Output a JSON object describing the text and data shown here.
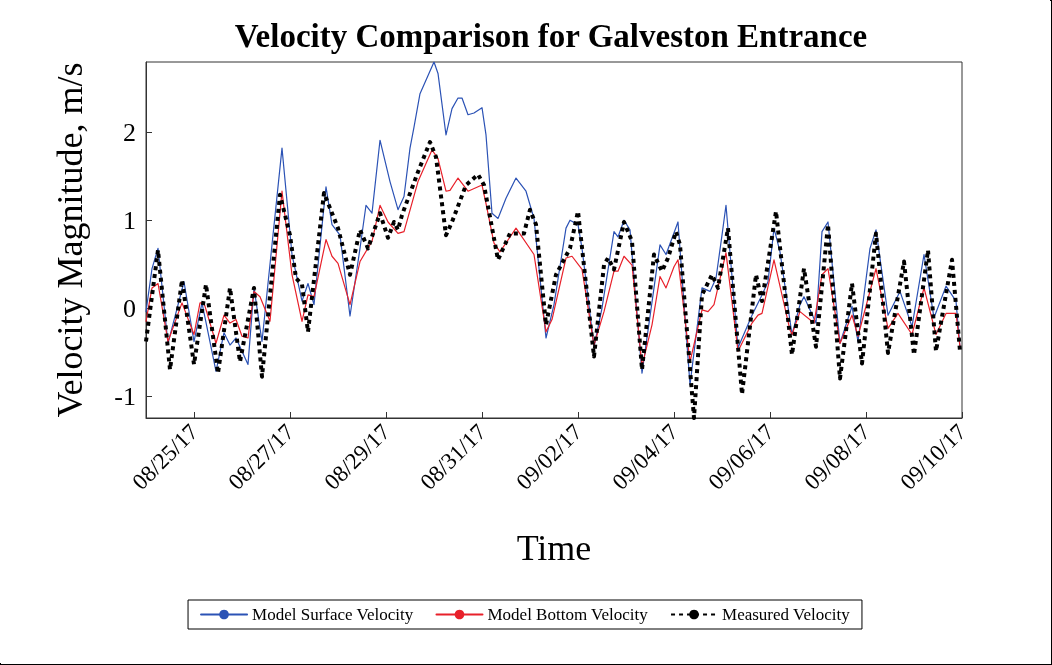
{
  "chart_data": {
    "type": "line",
    "title": "Velocity Comparison for Galveston Entrance",
    "xlabel": "Time",
    "ylabel": "Velocity Magnitude, m/s",
    "xlim": [
      "--08-24",
      "--09-10"
    ],
    "xticks": [
      {
        "value": "--08-25",
        "label": "08/25/17"
      },
      {
        "value": "--08-27",
        "label": "08/27/17"
      },
      {
        "value": "--08-29",
        "label": "08/29/17"
      },
      {
        "value": "--08-31",
        "label": "08/31/17"
      },
      {
        "value": "--09-02",
        "label": "09/02/17"
      },
      {
        "value": "--09-04",
        "label": "09/04/17"
      },
      {
        "value": "--09-06",
        "label": "09/06/17"
      },
      {
        "value": "--09-08",
        "label": "09/08/17"
      },
      {
        "value": "--09-10",
        "label": "09/10/17"
      }
    ],
    "ylim": [
      -1.25,
      2.8
    ],
    "yticks": [
      -1,
      0,
      1,
      2
    ],
    "grid": false,
    "legend": "bottom",
    "marker": "none",
    "series": [
      {
        "name": "Model Surface Velocity",
        "color": "#2b52b5",
        "line_style": "solid",
        "x": [
          "--08-24T00:00",
          "--08-24T03:00",
          "--08-24T06:00",
          "--08-24T11:00",
          "--08-24T19:00",
          "--08-25T00:00",
          "--08-25T04:00",
          "--08-25T11:00",
          "--08-25T15:00",
          "--08-25T18:00",
          "--08-25T21:00",
          "--08-26T03:00",
          "--08-26T06:00",
          "--08-26T10:00",
          "--08-26T20:00",
          "--08-27T01:00",
          "--08-27T06:00",
          "--08-27T09:00",
          "--08-27T12:00",
          "--08-27T18:00",
          "--08-27T21:00",
          "--08-28T01:00",
          "--08-28T06:00",
          "--08-28T11:00",
          "--08-28T14:00",
          "--08-28T17:00",
          "--08-28T21:00",
          "--08-29T02:00",
          "--08-29T06:00",
          "--08-29T09:00",
          "--08-29T12:00",
          "--08-29T14:00",
          "--08-29T17:00",
          "--08-30T00:00",
          "--08-30T02:00",
          "--08-30T06:00",
          "--08-30T09:00",
          "--08-30T12:00",
          "--08-30T14:00",
          "--08-30T17:00",
          "--08-30T20:00",
          "--08-31T00:00",
          "--08-31T02:00",
          "--08-31T05:00",
          "--08-31T08:00",
          "--08-31T12:00",
          "--08-31T17:00",
          "--08-31T22:00",
          "--09-01T02:00",
          "--09-01T08:00",
          "--09-01T12:00",
          "--09-01T18:00",
          "--09-01T20:00",
          "--09-02T00:00",
          "--09-02T02:00",
          "--09-02T08:00",
          "--09-02T12:00",
          "--09-02T18:00",
          "--09-02T20:00",
          "--09-02T23:00",
          "--09-03T02:00",
          "--09-03T08:00",
          "--09-03T14:00",
          "--09-03T17:00",
          "--09-03T20:00",
          "--09-04T02:00",
          "--09-04T08:00",
          "--09-04T14:00",
          "--09-04T18:00",
          "--09-04T21:00",
          "--09-05T00:00",
          "--09-05T02:00",
          "--09-05T08:00",
          "--09-05T15:00",
          "--09-05T20:00",
          "--09-05T23:00",
          "--09-06T02:00",
          "--09-06T05:00",
          "--09-06T11:00",
          "--09-06T15:00",
          "--09-06T17:00",
          "--09-06T23:00",
          "--09-07T02:00",
          "--09-07T05:00",
          "--09-07T11:00",
          "--09-07T17:00",
          "--09-07T20:00",
          "--09-08T02:00",
          "--09-08T05:00",
          "--09-08T11:00",
          "--09-08T17:00",
          "--09-08T23:00",
          "--09-09T05:00",
          "--09-09T10:00",
          "--09-09T16:00",
          "--09-09T21:00",
          "--09-09T23:00"
        ],
        "values": [
          -0.04,
          0.45,
          0.68,
          -0.4,
          0.3,
          -0.38,
          0.06,
          -0.72,
          -0.28,
          -0.42,
          -0.34,
          -0.64,
          0.23,
          -0.38,
          1.82,
          0.61,
          0.08,
          0.28,
          0.04,
          1.38,
          0.95,
          0.83,
          -0.09,
          0.68,
          1.17,
          1.08,
          1.91,
          1.44,
          1.12,
          1.27,
          1.82,
          2.06,
          2.44,
          2.8,
          2.67,
          1.97,
          2.27,
          2.39,
          2.39,
          2.2,
          2.22,
          2.28,
          1.97,
          1.08,
          1.02,
          1.25,
          1.48,
          1.33,
          1.02,
          -0.34,
          0.04,
          0.91,
          1.0,
          0.95,
          0.68,
          -0.44,
          0.0,
          0.87,
          0.81,
          1.0,
          0.89,
          -0.74,
          0.23,
          0.72,
          0.61,
          0.98,
          -0.87,
          0.23,
          0.19,
          0.34,
          0.83,
          1.17,
          -0.45,
          -0.08,
          0.15,
          0.3,
          0.91,
          0.64,
          -0.3,
          0.04,
          0.13,
          -0.17,
          0.87,
          0.98,
          -0.4,
          0.02,
          -0.38,
          0.68,
          0.89,
          -0.08,
          0.19,
          -0.21,
          0.61,
          -0.11,
          0.25,
          0.08,
          -0.45
        ]
      },
      {
        "name": "Model Bottom Velocity",
        "color": "#e8202a",
        "line_style": "solid",
        "x": [
          "--08-24T00:00",
          "--08-24T03:00",
          "--08-24T06:00",
          "--08-24T11:00",
          "--08-24T18:00",
          "--08-25T00:00",
          "--08-25T03:00",
          "--08-25T05:00",
          "--08-25T11:00",
          "--08-25T15:00",
          "--08-25T18:00",
          "--08-25T21:00",
          "--08-26T00:00",
          "--08-26T03:00",
          "--08-26T06:00",
          "--08-26T09:00",
          "--08-26T14:00",
          "--08-26T20:00",
          "--08-27T01:00",
          "--08-27T06:00",
          "--08-27T09:00",
          "--08-27T12:00",
          "--08-27T18:00",
          "--08-27T21:00",
          "--08-28T00:00",
          "--08-28T06:00",
          "--08-28T11:00",
          "--08-28T17:00",
          "--08-28T21:00",
          "--08-29T01:00",
          "--08-29T06:00",
          "--08-29T09:00",
          "--08-29T16:00",
          "--08-29T23:00",
          "--08-30T02:00",
          "--08-30T06:00",
          "--08-30T08:00",
          "--08-30T12:00",
          "--08-30T17:00",
          "--08-31T00:00",
          "--08-31T02:00",
          "--08-31T06:00",
          "--08-31T09:00",
          "--08-31T17:00",
          "--09-01T02:00",
          "--09-01T08:00",
          "--09-01T11:00",
          "--09-01T18:00",
          "--09-01T21:00",
          "--09-02T02:00",
          "--09-02T08:00",
          "--09-02T13:00",
          "--09-02T18:00",
          "--09-02T20:00",
          "--09-02T23:00",
          "--09-03T03:00",
          "--09-03T08:00",
          "--09-03T13:00",
          "--09-03T17:00",
          "--09-03T20:00",
          "--09-04T00:00",
          "--09-04T02:00",
          "--09-04T08:00",
          "--09-04T14:00",
          "--09-04T17:00",
          "--09-04T20:00",
          "--09-05T02:00",
          "--09-05T08:00",
          "--09-05T15:00",
          "--09-05T18:00",
          "--09-05T20:00",
          "--09-06T02:00",
          "--09-06T10:00",
          "--09-06T11:00",
          "--09-06T15:00",
          "--09-06T22:00",
          "--09-07T02:00",
          "--09-07T05:00",
          "--09-07T11:00",
          "--09-07T17:00",
          "--09-07T20:00",
          "--09-08T05:00",
          "--09-08T11:00",
          "--09-08T16:00",
          "--09-08T23:00",
          "--09-09T05:00",
          "--09-09T11:00",
          "--09-09T16:00",
          "--09-09T21:00",
          "--09-09T23:00"
        ],
        "values": [
          -0.15,
          0.23,
          0.28,
          -0.38,
          0.06,
          -0.3,
          0.06,
          0.06,
          -0.4,
          -0.08,
          -0.17,
          -0.13,
          -0.32,
          -0.34,
          0.19,
          0.13,
          -0.15,
          1.33,
          0.38,
          -0.15,
          0.15,
          0.13,
          0.78,
          0.59,
          0.51,
          0.04,
          0.53,
          0.76,
          1.17,
          0.98,
          0.85,
          0.87,
          1.44,
          1.8,
          1.7,
          1.33,
          1.34,
          1.48,
          1.33,
          1.4,
          1.19,
          0.74,
          0.64,
          0.91,
          0.61,
          -0.27,
          -0.13,
          0.57,
          0.59,
          0.44,
          -0.42,
          -0.04,
          0.42,
          0.42,
          0.59,
          0.49,
          -0.66,
          -0.19,
          0.36,
          0.23,
          0.47,
          0.55,
          -0.61,
          -0.02,
          -0.04,
          0.04,
          0.63,
          -0.49,
          -0.17,
          -0.08,
          -0.06,
          0.55,
          -0.25,
          -0.3,
          -0.04,
          -0.17,
          0.38,
          0.45,
          -0.4,
          -0.08,
          -0.32,
          0.45,
          -0.23,
          -0.06,
          -0.3,
          0.23,
          -0.3,
          -0.06,
          -0.06,
          -0.44
        ]
      },
      {
        "name": "Measured Velocity",
        "color": "#000000",
        "line_style": "dotted",
        "x": [
          "--08-24T00:00",
          "--08-24T06:00",
          "--08-24T12:00",
          "--08-24T18:00",
          "--08-25T00:00",
          "--08-25T06:00",
          "--08-25T12:00",
          "--08-25T18:00",
          "--08-25T23:00",
          "--08-26T06:00",
          "--08-26T10:00",
          "--08-26T19:00",
          "--08-27T00:00",
          "--08-27T03:00",
          "--08-27T06:00",
          "--08-27T09:00",
          "--08-27T17:00",
          "--08-28T00:00",
          "--08-28T06:00",
          "--08-28T11:00",
          "--08-28T15:00",
          "--08-28T21:00",
          "--08-29T01:00",
          "--08-29T04:00",
          "--08-29T06:00",
          "--08-29T08:00",
          "--08-29T16:00",
          "--08-29T22:00",
          "--08-30T01:00",
          "--08-30T06:00",
          "--08-30T09:00",
          "--08-30T16:00",
          "--08-30T22:00",
          "--08-31T01:00",
          "--08-31T08:00",
          "--08-31T14:00",
          "--08-31T21:00",
          "--09-01T00:00",
          "--09-01T03:00",
          "--09-01T08:00",
          "--09-01T13:00",
          "--09-01T20:00",
          "--09-02T00:00",
          "--09-02T08:00",
          "--09-02T13:00",
          "--09-02T15:00",
          "--09-02T18:00",
          "--09-02T23:00",
          "--09-03T03:00",
          "--09-03T08:00",
          "--09-03T14:00",
          "--09-03T18:00",
          "--09-03T21:00",
          "--09-04T01:00",
          "--09-04T03:00",
          "--09-04T10:00",
          "--09-04T14:00",
          "--09-04T19:00",
          "--09-04T22:00",
          "--09-05T03:00",
          "--09-05T10:00",
          "--09-05T17:00",
          "--09-05T20:00",
          "--09-06T03:00",
          "--09-06T11:00",
          "--09-06T17:00",
          "--09-06T23:00",
          "--09-07T05:00",
          "--09-07T11:00",
          "--09-07T17:00",
          "--09-07T22:00",
          "--09-08T05:00",
          "--09-08T11:00",
          "--09-08T19:00",
          "--09-09T00:00",
          "--09-09T07:00",
          "--09-09T11:00",
          "--09-09T19:00",
          "--09-09T23:00"
        ],
        "values": [
          -0.38,
          0.66,
          -0.7,
          0.32,
          -0.64,
          0.27,
          -0.74,
          0.23,
          -0.61,
          0.23,
          -0.78,
          1.29,
          0.83,
          0.34,
          0.27,
          -0.27,
          1.31,
          0.91,
          0.38,
          0.89,
          0.68,
          1.08,
          0.8,
          0.98,
          0.89,
          1.06,
          1.55,
          1.89,
          1.72,
          0.83,
          0.98,
          1.4,
          1.52,
          1.4,
          0.55,
          0.85,
          0.85,
          1.12,
          0.95,
          -0.19,
          0.38,
          0.68,
          1.1,
          -0.55,
          0.49,
          0.57,
          0.44,
          0.98,
          0.76,
          -0.7,
          0.61,
          0.42,
          0.57,
          0.87,
          0.72,
          -1.25,
          0.15,
          0.38,
          0.23,
          0.91,
          -0.98,
          0.38,
          0.08,
          1.1,
          -0.53,
          0.45,
          -0.44,
          0.95,
          -0.8,
          0.28,
          -0.63,
          0.85,
          -0.51,
          0.53,
          -0.53,
          0.66,
          -0.49,
          0.55,
          -0.49
        ]
      }
    ]
  }
}
